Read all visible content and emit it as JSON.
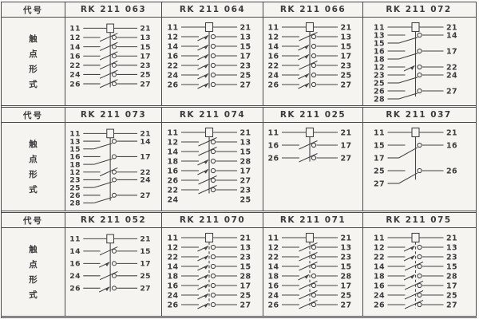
{
  "labels": {
    "code": "代号",
    "contact_form": [
      "触",
      "点",
      "形",
      "式"
    ]
  },
  "colors": {
    "background": "#f6f4f1",
    "line": "#454545",
    "text": "#3b3b3b",
    "border": "#4a4a4a",
    "page": "#fdfcfb"
  },
  "legend": {
    "coil": "relay coil between terminals",
    "nc": "normally-closed contact",
    "no": "normally-open contact",
    "co": "changeover contact (left_top / left_bottom to right)",
    "labels": "terminal numbers only"
  },
  "sections": [
    {
      "models": [
        {
          "name": "RK 211 063",
          "linkage": "solid",
          "rows": [
            {
              "type": "coil",
              "left": "11",
              "right": "21"
            },
            {
              "type": "nc",
              "left": "12",
              "right": "13"
            },
            {
              "type": "nc",
              "left": "14",
              "right": "15"
            },
            {
              "type": "nc",
              "left": "16",
              "right": "17"
            },
            {
              "type": "nc",
              "left": "22",
              "right": "23"
            },
            {
              "type": "nc",
              "left": "24",
              "right": "25"
            },
            {
              "type": "nc",
              "left": "26",
              "right": "27"
            }
          ]
        },
        {
          "name": "RK 211 064",
          "linkage": "solid",
          "rows": [
            {
              "type": "coil",
              "left": "11",
              "right": "21"
            },
            {
              "type": "no",
              "left": "12",
              "right": "13"
            },
            {
              "type": "no",
              "left": "14",
              "right": "15"
            },
            {
              "type": "no",
              "left": "16",
              "right": "17"
            },
            {
              "type": "no",
              "left": "22",
              "right": "23"
            },
            {
              "type": "no",
              "left": "24",
              "right": "25"
            },
            {
              "type": "no",
              "left": "26",
              "right": "27"
            }
          ]
        },
        {
          "name": "RK 211 066",
          "linkage": "solid",
          "rows": [
            {
              "type": "coil",
              "left": "11",
              "right": "21"
            },
            {
              "type": "nc",
              "left": "12",
              "right": "13"
            },
            {
              "type": "no",
              "left": "14",
              "right": "15"
            },
            {
              "type": "no",
              "left": "16",
              "right": "17"
            },
            {
              "type": "nc",
              "left": "22",
              "right": "23"
            },
            {
              "type": "no",
              "left": "24",
              "right": "25"
            },
            {
              "type": "no",
              "left": "26",
              "right": "27"
            }
          ]
        },
        {
          "name": "RK 211 072",
          "linkage": "solid",
          "rows": [
            {
              "type": "coil",
              "left": "11",
              "right": "21"
            },
            {
              "type": "co",
              "left_top": "13",
              "left_bottom": "15",
              "right": "14"
            },
            {
              "type": "co",
              "left_top": "16",
              "left_bottom": "18",
              "right": "17"
            },
            {
              "type": "no",
              "left": "12",
              "right": "22"
            },
            {
              "type": "co",
              "left_top": "23",
              "left_bottom": "25",
              "right": "24"
            },
            {
              "type": "co",
              "left_top": "26",
              "left_bottom": "28",
              "right": "27"
            }
          ]
        }
      ]
    },
    {
      "models": [
        {
          "name": "RK 211 073",
          "linkage": "solid",
          "rows": [
            {
              "type": "coil",
              "left": "11",
              "right": "21"
            },
            {
              "type": "co",
              "left_top": "13",
              "left_bottom": "15",
              "right": "14"
            },
            {
              "type": "co",
              "left_top": "16",
              "left_bottom": "18",
              "right": "17"
            },
            {
              "type": "nc",
              "left": "12",
              "right": "22"
            },
            {
              "type": "co",
              "left_top": "23",
              "left_bottom": "25",
              "right": "24"
            },
            {
              "type": "co",
              "left_top": "26",
              "left_bottom": "28",
              "right": "27"
            }
          ]
        },
        {
          "name": "RK 211 074",
          "linkage": "solid",
          "rows": [
            {
              "type": "coil",
              "left": "11",
              "right": "21"
            },
            {
              "type": "nc",
              "left": "12",
              "right": "13"
            },
            {
              "type": "nc",
              "left": "14",
              "right": "15"
            },
            {
              "type": "no",
              "left": "18",
              "right": "28"
            },
            {
              "type": "no",
              "left": "16",
              "right": "17"
            },
            {
              "type": "nc",
              "left": "26",
              "right": "27"
            },
            {
              "type": "nc",
              "left": "22",
              "right": "23"
            },
            {
              "type": "labels",
              "left": "24",
              "right": "25"
            }
          ]
        },
        {
          "name": "RK 211 025",
          "linkage": "solid",
          "rows": [
            {
              "type": "coil",
              "left": "11",
              "right": "21"
            },
            {
              "type": "nc",
              "left": "16",
              "right": "17"
            },
            {
              "type": "nc",
              "left": "26",
              "right": "27"
            }
          ]
        },
        {
          "name": "RK 211 037",
          "linkage": "solid",
          "rows": [
            {
              "type": "coil",
              "left": "11",
              "right": "21"
            },
            {
              "type": "co",
              "left_top": "15",
              "left_bottom": "17",
              "right": "16"
            },
            {
              "type": "co",
              "left_top": "25",
              "left_bottom": "27",
              "right": "26"
            }
          ]
        }
      ]
    },
    {
      "models": [
        {
          "name": "RK 211 052",
          "linkage": "solid",
          "rows": [
            {
              "type": "coil",
              "left": "11",
              "right": "21"
            },
            {
              "type": "nc",
              "left": "14",
              "right": "15"
            },
            {
              "type": "no",
              "left": "16",
              "right": "17"
            },
            {
              "type": "nc",
              "left": "24",
              "right": "25"
            },
            {
              "type": "no",
              "left": "26",
              "right": "27"
            }
          ]
        },
        {
          "name": "RK 211 070",
          "linkage": "dashed",
          "rows": [
            {
              "type": "coil",
              "left": "11",
              "right": "21"
            },
            {
              "type": "no",
              "left": "12",
              "right": "13"
            },
            {
              "type": "no",
              "left": "22",
              "right": "23"
            },
            {
              "type": "no",
              "left": "14",
              "right": "15"
            },
            {
              "type": "no",
              "left": "18",
              "right": "28"
            },
            {
              "type": "no",
              "left": "16",
              "right": "17"
            },
            {
              "type": "no",
              "left": "24",
              "right": "25"
            },
            {
              "type": "no",
              "left": "26",
              "right": "27"
            }
          ]
        },
        {
          "name": "RK 211 071",
          "linkage": "dashed",
          "rows": [
            {
              "type": "coil",
              "left": "11",
              "right": "21"
            },
            {
              "type": "nc",
              "left": "12",
              "right": "13"
            },
            {
              "type": "nc",
              "left": "22",
              "right": "23"
            },
            {
              "type": "nc",
              "left": "14",
              "right": "15"
            },
            {
              "type": "no",
              "left": "18",
              "right": "28"
            },
            {
              "type": "nc",
              "left": "16",
              "right": "17"
            },
            {
              "type": "nc",
              "left": "24",
              "right": "25"
            },
            {
              "type": "nc",
              "left": "26",
              "right": "27"
            }
          ]
        },
        {
          "name": "RK 211 075",
          "linkage": "dashed",
          "rows": [
            {
              "type": "coil",
              "left": "11",
              "right": "21"
            },
            {
              "type": "no",
              "left": "12",
              "right": "13"
            },
            {
              "type": "no",
              "left": "22",
              "right": "23"
            },
            {
              "type": "nc",
              "left": "14",
              "right": "15"
            },
            {
              "type": "no",
              "left": "18",
              "right": "28"
            },
            {
              "type": "nc",
              "left": "16",
              "right": "17"
            },
            {
              "type": "nc",
              "left": "24",
              "right": "25"
            },
            {
              "type": "nc",
              "left": "26",
              "right": "27"
            }
          ]
        }
      ]
    }
  ]
}
